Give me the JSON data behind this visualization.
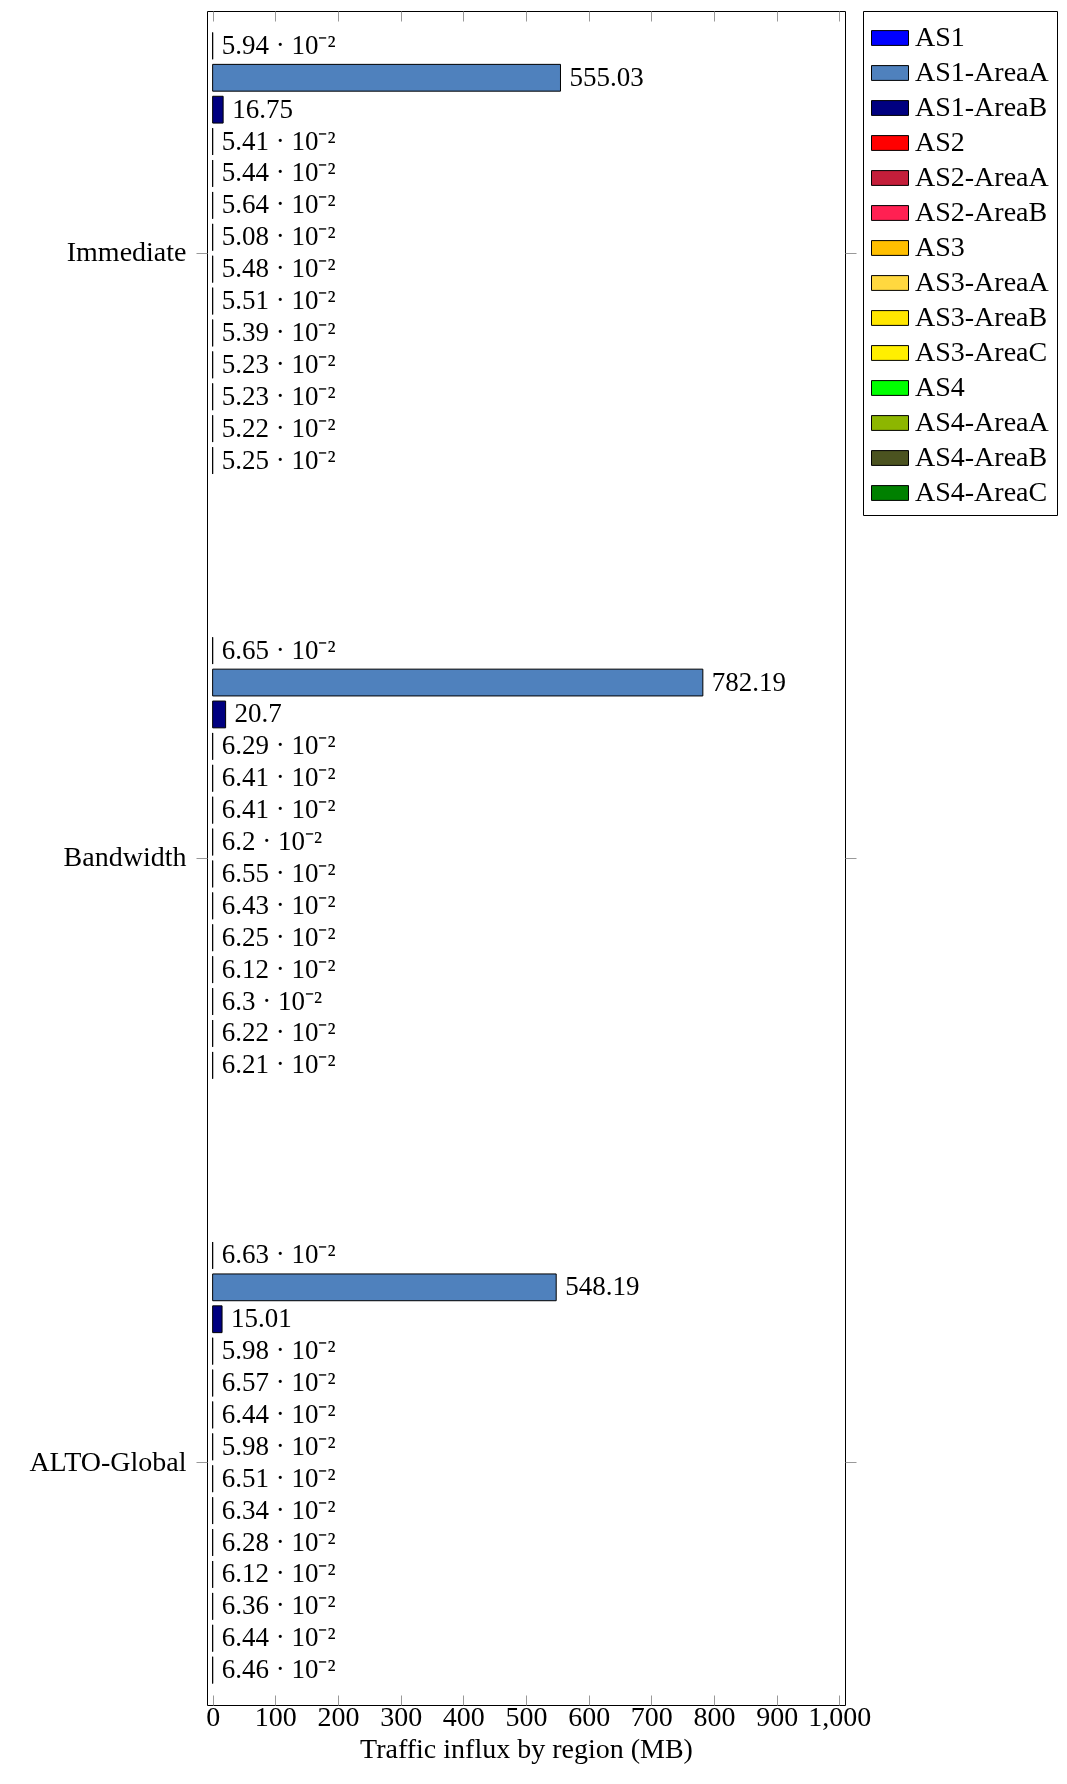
{
  "chart_data": {
    "type": "bar",
    "orientation": "horizontal",
    "categories": [
      "Immediate",
      "Bandwidth",
      "ALTO-Global"
    ],
    "xlabel": "Traffic influx by region (MB)",
    "xlim": [
      -9,
      1009
    ],
    "xticks": [
      0,
      100,
      200,
      300,
      400,
      500,
      600,
      700,
      800,
      900,
      {
        "value": 1000,
        "label": "1,000"
      }
    ],
    "grid": false,
    "legend": "top right",
    "series": [
      {
        "name": "AS1",
        "color": "#0000ff",
        "values": [
          0.0594,
          0.0665,
          0.0663
        ],
        "value_labels": [
          "5.94 · 10⁻²",
          "6.65 · 10⁻²",
          "6.63 · 10⁻²"
        ]
      },
      {
        "name": "AS1-AreaA",
        "color": "#4f81bd",
        "values": [
          555.03,
          782.19,
          548.19
        ],
        "value_labels": [
          "555.03",
          "782.19",
          "548.19"
        ]
      },
      {
        "name": "AS1-AreaB",
        "color": "#000080",
        "values": [
          16.75,
          20.7,
          15.01
        ],
        "value_labels": [
          "16.75",
          "20.7",
          "15.01"
        ]
      },
      {
        "name": "AS2",
        "color": "#ff0000",
        "values": [
          0.0541,
          0.0629,
          0.0598
        ],
        "value_labels": [
          "5.41 · 10⁻²",
          "6.29 · 10⁻²",
          "5.98 · 10⁻²"
        ]
      },
      {
        "name": "AS2-AreaA",
        "color": "#c41e3a",
        "values": [
          0.0544,
          0.0641,
          0.0657
        ],
        "value_labels": [
          "5.44 · 10⁻²",
          "6.41 · 10⁻²",
          "6.57 · 10⁻²"
        ]
      },
      {
        "name": "AS2-AreaB",
        "color": "#ff2052",
        "values": [
          0.0564,
          0.0641,
          0.0644
        ],
        "value_labels": [
          "5.64 · 10⁻²",
          "6.41 · 10⁻²",
          "6.44 · 10⁻²"
        ]
      },
      {
        "name": "AS3",
        "color": "#ffbf00",
        "values": [
          0.0508,
          0.062,
          0.0598
        ],
        "value_labels": [
          "5.08 · 10⁻²",
          "6.2 · 10⁻²",
          "5.98 · 10⁻²"
        ]
      },
      {
        "name": "AS3-AreaA",
        "color": "#ffd83f",
        "values": [
          0.0548,
          0.0655,
          0.0651
        ],
        "value_labels": [
          "5.48 · 10⁻²",
          "6.55 · 10⁻²",
          "6.51 · 10⁻²"
        ]
      },
      {
        "name": "AS3-AreaB",
        "color": "#ffe600",
        "values": [
          0.0551,
          0.0643,
          0.0634
        ],
        "value_labels": [
          "5.51 · 10⁻²",
          "6.43 · 10⁻²",
          "6.34 · 10⁻²"
        ]
      },
      {
        "name": "AS3-AreaC",
        "color": "#ffef00",
        "values": [
          0.0539,
          0.0625,
          0.0628
        ],
        "value_labels": [
          "5.39 · 10⁻²",
          "6.25 · 10⁻²",
          "6.28 · 10⁻²"
        ]
      },
      {
        "name": "AS4",
        "color": "#00ff00",
        "values": [
          0.0523,
          0.0612,
          0.0612
        ],
        "value_labels": [
          "5.23 · 10⁻²",
          "6.12 · 10⁻²",
          "6.12 · 10⁻²"
        ]
      },
      {
        "name": "AS4-AreaA",
        "color": "#8db600",
        "values": [
          0.0523,
          0.063,
          0.0636
        ],
        "value_labels": [
          "5.23 · 10⁻²",
          "6.3 · 10⁻²",
          "6.36 · 10⁻²"
        ]
      },
      {
        "name": "AS4-AreaB",
        "color": "#4b5320",
        "values": [
          0.0522,
          0.0622,
          0.0644
        ],
        "value_labels": [
          "5.22 · 10⁻²",
          "6.22 · 10⁻²",
          "6.44 · 10⁻²"
        ]
      },
      {
        "name": "AS4-AreaC",
        "color": "#008000",
        "values": [
          0.0525,
          0.0621,
          0.0646
        ],
        "value_labels": [
          "5.25 · 10⁻²",
          "6.21 · 10⁻²",
          "6.46 · 10⁻²"
        ]
      }
    ]
  }
}
